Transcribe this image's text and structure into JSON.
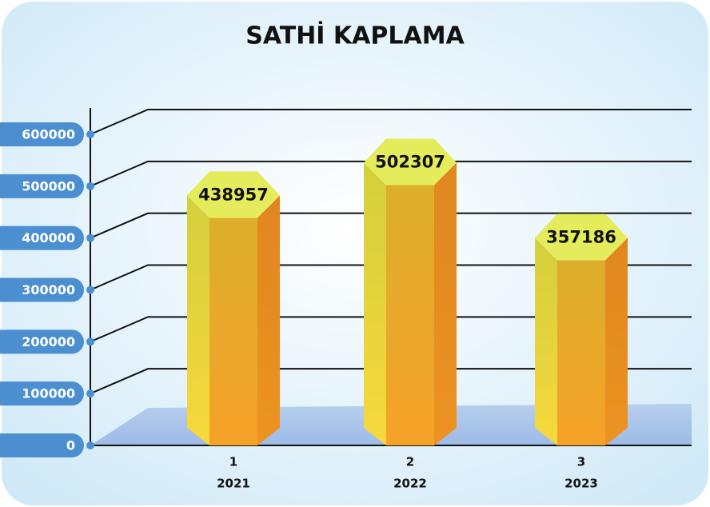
{
  "chart_data": {
    "type": "bar",
    "title": "SATHİ KAPLAMA",
    "categories": [
      "1",
      "2",
      "3"
    ],
    "category_years": [
      "2021",
      "2022",
      "2023"
    ],
    "values": [
      438957,
      502307,
      357186
    ],
    "ylim": [
      0,
      600000
    ],
    "yticks": [
      0,
      100000,
      200000,
      300000,
      400000,
      500000,
      600000
    ],
    "grid": true
  }
}
